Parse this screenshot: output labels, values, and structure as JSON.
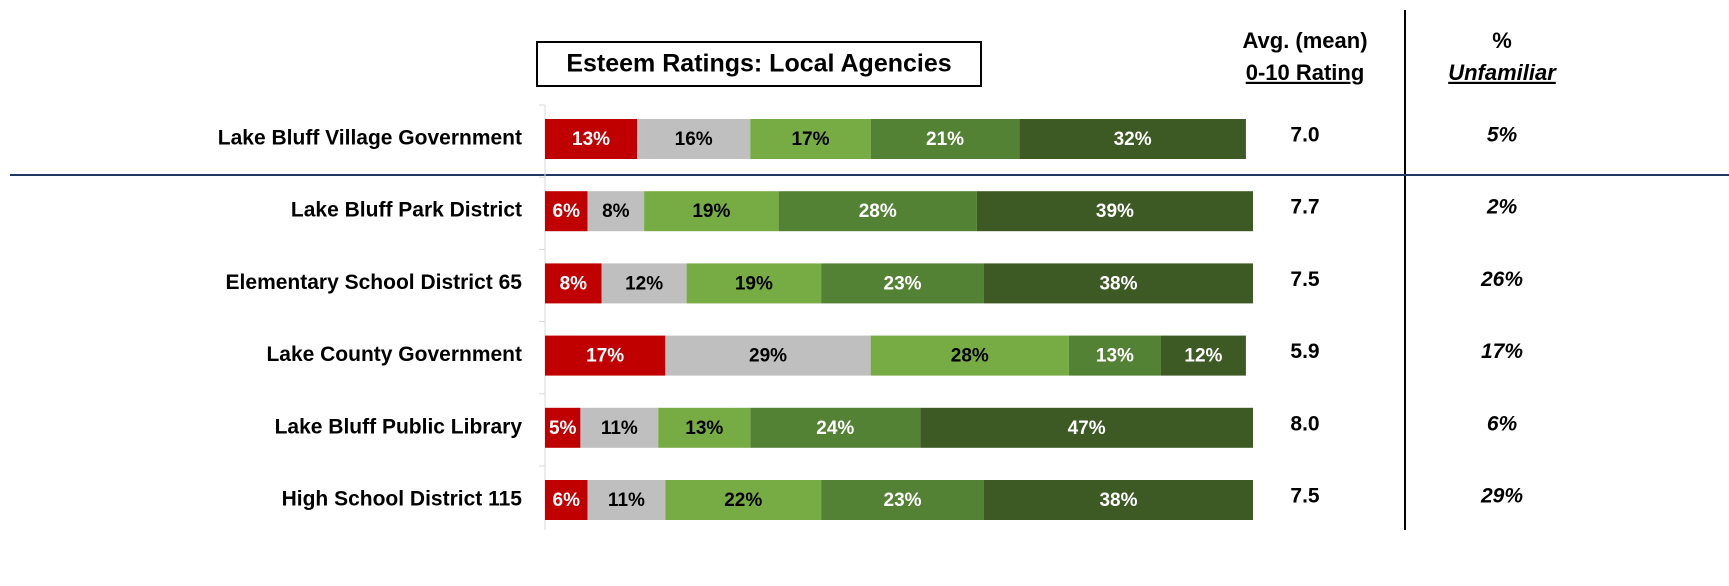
{
  "chart_data": {
    "type": "bar",
    "orientation": "horizontal",
    "stacked": true,
    "title": "Esteem Ratings:  Local Agencies",
    "categories": [
      "Lake Bluff Village Government",
      "Lake Bluff Park District",
      "Elementary School District 65",
      "Lake County Government",
      "Lake Bluff Public Library",
      "High School District 115"
    ],
    "xlim": [
      0,
      100
    ],
    "series": [
      {
        "color": "#c00000",
        "label_color": "#ffffff",
        "values": [
          13,
          6,
          8,
          17,
          5,
          6
        ],
        "value_labels": [
          "13%",
          "6%",
          "8%",
          "17%",
          "5%",
          "6%"
        ]
      },
      {
        "color": "#bfbfbf",
        "label_color": "#000000",
        "values": [
          16,
          8,
          12,
          29,
          11,
          11
        ],
        "value_labels": [
          "16%",
          "8%",
          "12%",
          "29%",
          "11%",
          "11%"
        ]
      },
      {
        "color": "#77ab43",
        "label_color": "#000000",
        "values": [
          17,
          19,
          19,
          28,
          13,
          22
        ],
        "value_labels": [
          "17%",
          "19%",
          "19%",
          "28%",
          "13%",
          "22%"
        ]
      },
      {
        "color": "#548235",
        "label_color": "#ffffff",
        "values": [
          21,
          28,
          23,
          13,
          24,
          23
        ],
        "value_labels": [
          "21%",
          "28%",
          "23%",
          "13%",
          "24%",
          "23%"
        ]
      },
      {
        "color": "#3d5a24",
        "label_color": "#ffffff",
        "values": [
          32,
          39,
          38,
          12,
          47,
          38
        ],
        "value_labels": [
          "32%",
          "39%",
          "38%",
          "12%",
          "47%",
          "38%"
        ]
      }
    ],
    "columns": [
      {
        "header": [
          "Avg. (mean)",
          "0-10 Rating"
        ],
        "values": [
          7.0,
          7.7,
          7.5,
          5.9,
          8.0,
          7.5
        ],
        "value_labels": [
          "7.0",
          "7.7",
          "7.5",
          "5.9",
          "8.0",
          "7.5"
        ]
      },
      {
        "header": [
          "%",
          "Unfamiliar"
        ],
        "italic": true,
        "values": [
          5,
          2,
          26,
          17,
          6,
          29
        ],
        "value_labels": [
          "5%",
          "2%",
          "26%",
          "17%",
          "6%",
          "29%"
        ]
      }
    ]
  }
}
